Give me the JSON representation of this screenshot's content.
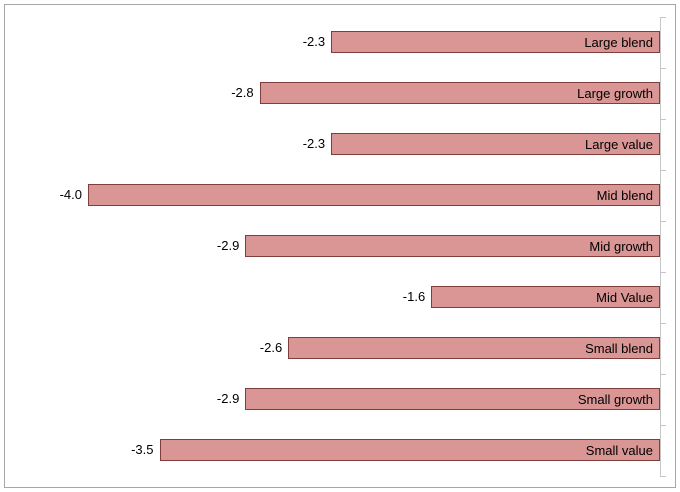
{
  "chart_data": {
    "type": "bar",
    "orientation": "horizontal",
    "title": "",
    "xlabel": "",
    "ylabel": "",
    "categories": [
      "Large blend",
      "Large growth",
      "Large value",
      "Mid blend",
      "Mid growth",
      "Mid Value",
      "Small blend",
      "Small growth",
      "Small value"
    ],
    "values": [
      -2.3,
      -2.8,
      -2.3,
      -4.0,
      -2.9,
      -1.6,
      -2.6,
      -2.9,
      -3.5
    ],
    "value_labels": [
      "-2.3",
      "-2.8",
      "-2.3",
      "-4.0",
      "-2.9",
      "-1.6",
      "-2.6",
      "-2.9",
      "-3.5"
    ],
    "xlim": [
      -4.0,
      0
    ],
    "grid": false,
    "legend": false,
    "axis_side": "right",
    "bar_color": "#d99694",
    "bar_border_color": "#7f3d3b",
    "tick_color": "#c6c6c6",
    "frame_border_color": "#a6a6a6",
    "text_color": "#000000"
  }
}
